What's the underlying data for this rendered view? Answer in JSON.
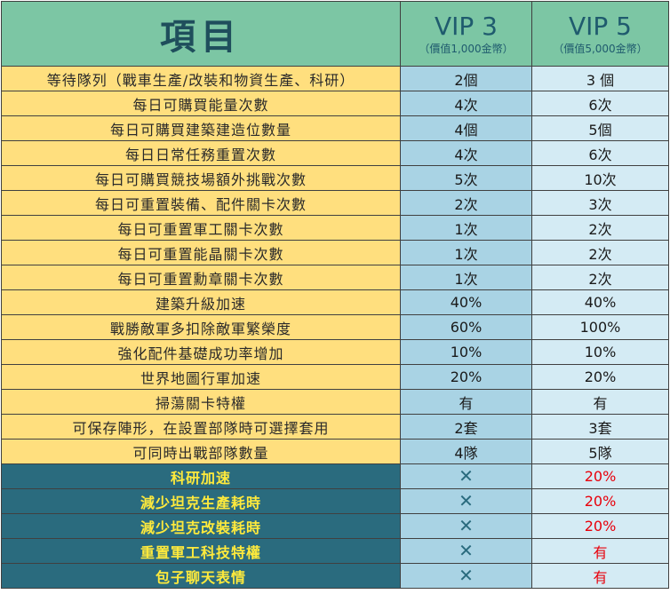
{
  "header": {
    "item_label": "項目",
    "vip3": {
      "title": "VIP 3",
      "price": "（價值1,000金幣）"
    },
    "vip5": {
      "title": "VIP 5",
      "price": "（價值5,000金幣）"
    }
  },
  "rows": [
    {
      "feature": "等待隊列（戰車生產/改裝和物資生產、科研）",
      "vip3": "2個",
      "vip5": "3 個"
    },
    {
      "feature": "每日可購買能量次數",
      "vip3": "4次",
      "vip5": "6次"
    },
    {
      "feature": "每日可購買建築建造位數量",
      "vip3": "4個",
      "vip5": "5個"
    },
    {
      "feature": "每日日常任務重置次數",
      "vip3": "4次",
      "vip5": "6次"
    },
    {
      "feature": "每日可購買競技場額外挑戰次數",
      "vip3": "5次",
      "vip5": "10次"
    },
    {
      "feature": "每日可重置裝備、配件關卡次數",
      "vip3": "2次",
      "vip5": "3次"
    },
    {
      "feature": "每日可重置軍工關卡次數",
      "vip3": "1次",
      "vip5": "2次"
    },
    {
      "feature": "每日可重置能晶關卡次數",
      "vip3": "1次",
      "vip5": "2次"
    },
    {
      "feature": "每日可重置勳章關卡次數",
      "vip3": "1次",
      "vip5": "2次"
    },
    {
      "feature": "建築升級加速",
      "vip3": "40%",
      "vip5": "40%"
    },
    {
      "feature": "戰勝敵軍多扣除敵軍繁榮度",
      "vip3": "60%",
      "vip5": "100%"
    },
    {
      "feature": "強化配件基礎成功率增加",
      "vip3": "10%",
      "vip5": "10%"
    },
    {
      "feature": "世界地圖行軍加速",
      "vip3": "20%",
      "vip5": "20%"
    },
    {
      "feature": "掃蕩關卡特權",
      "vip3": "有",
      "vip5": "有"
    },
    {
      "feature": "可保存陣形，在設置部隊時可選擇套用",
      "vip3": "2套",
      "vip5": "3套"
    },
    {
      "feature": "可同時出戰部隊數量",
      "vip3": "4隊",
      "vip5": "5隊"
    }
  ],
  "vip5_only_rows": [
    {
      "feature": "科研加速",
      "vip3": "✕",
      "vip5": "20%"
    },
    {
      "feature": "減少坦克生產耗時",
      "vip3": "✕",
      "vip5": "20%"
    },
    {
      "feature": "減少坦克改裝耗時",
      "vip3": "✕",
      "vip5": "20%"
    },
    {
      "feature": "重置軍工科技特權",
      "vip3": "✕",
      "vip5": "有"
    },
    {
      "feature": "包子聊天表情",
      "vip3": "✕",
      "vip5": "有"
    }
  ],
  "colors": {
    "header_bg": "#7cc6a4",
    "feature_bg": "#ffdf7e",
    "vip3_bg": "#a9d3e4",
    "vip5_bg": "#d4ebf4",
    "exclusive_bg": "#2a6b7e",
    "exclusive_text": "#ffea3c",
    "exclusive_value": "#e8000b"
  }
}
